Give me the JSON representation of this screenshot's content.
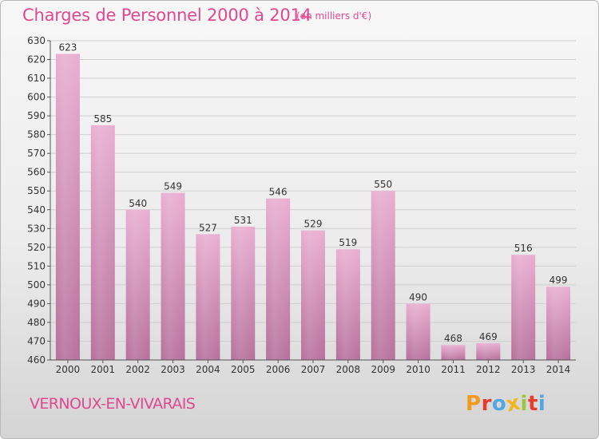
{
  "header": {
    "title": "Charges de Personnel 2000 à 2014",
    "subtitle": "(en milliers d'€)"
  },
  "footer": {
    "town": "VERNOUX-EN-VIVARAIS",
    "logo": {
      "letters": [
        "P",
        "r",
        "o",
        "x",
        "i",
        "t",
        "i"
      ]
    }
  },
  "colors": {
    "accent": "#e0488f",
    "bar_top": "#e9aed1",
    "bar_bottom": "#b6709b",
    "logo_letters": [
      "#f29a1f",
      "#e43d2b",
      "#52a7e0",
      "#f2b61f",
      "#9ac53c",
      "#e43d2b",
      "#52a7e0"
    ]
  },
  "chart_data": {
    "type": "bar",
    "categories": [
      "2000",
      "2001",
      "2002",
      "2003",
      "2004",
      "2005",
      "2006",
      "2007",
      "2008",
      "2009",
      "2010",
      "2011",
      "2012",
      "2013",
      "2014"
    ],
    "values": [
      623,
      585,
      540,
      549,
      527,
      531,
      546,
      529,
      519,
      550,
      490,
      468,
      469,
      516,
      499
    ],
    "title": "Charges de Personnel 2000 à 2014",
    "subtitle": "(en milliers d'€)",
    "ylim": [
      460,
      630
    ],
    "yticks": [
      460,
      470,
      480,
      490,
      500,
      510,
      520,
      530,
      540,
      550,
      560,
      570,
      580,
      590,
      600,
      610,
      620,
      630
    ],
    "grid": true
  }
}
